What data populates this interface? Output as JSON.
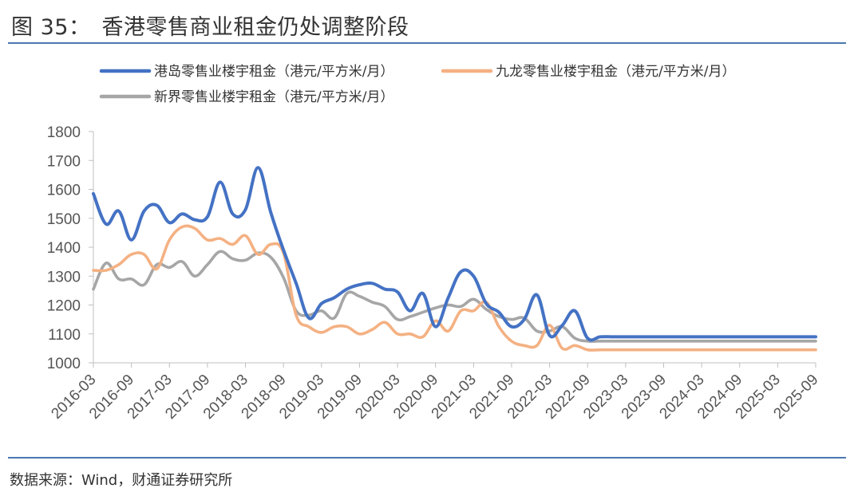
{
  "figure": {
    "number": "图 35：",
    "title": "香港零售商业租金仍处调整阶段",
    "source": "数据来源：Wind，财通证券研究所"
  },
  "chart_data": {
    "type": "line",
    "title": "香港零售商业租金仍处调整阶段",
    "xlabel": "",
    "ylabel": "",
    "ylim": [
      1000,
      1800
    ],
    "yticks": [
      1000,
      1100,
      1200,
      1300,
      1400,
      1500,
      1600,
      1700,
      1800
    ],
    "xticks": [
      "2016-03",
      "2016-09",
      "2017-03",
      "2017-09",
      "2018-03",
      "2018-09",
      "2019-03",
      "2019-09",
      "2020-03",
      "2020-09",
      "2021-03",
      "2021-09",
      "2022-03",
      "2022-09",
      "2023-03",
      "2023-09",
      "2024-03",
      "2024-09",
      "2025-03",
      "2025-09"
    ],
    "x": [
      0,
      2,
      4,
      6,
      8,
      10,
      12,
      14,
      16,
      18,
      20,
      22,
      24,
      26,
      28,
      30,
      32,
      34,
      36,
      38,
      40,
      42,
      44,
      46,
      48,
      50,
      52,
      54,
      56,
      58,
      60,
      62,
      64,
      66,
      68,
      70,
      72,
      74,
      76,
      78,
      80,
      82,
      84,
      86,
      88,
      90,
      92,
      94,
      96,
      98,
      100,
      102,
      104,
      106,
      108,
      110,
      112,
      114
    ],
    "legend_position": "top",
    "series": [
      {
        "name": "港岛零售业楼宇租金（港元/平方米/月）",
        "color": "#4472c4",
        "values": [
          1585,
          1480,
          1525,
          1425,
          1525,
          1545,
          1485,
          1515,
          1495,
          1505,
          1625,
          1515,
          1530,
          1675,
          1520,
          1390,
          1275,
          1155,
          1205,
          1225,
          1255,
          1270,
          1275,
          1255,
          1245,
          1180,
          1240,
          1125,
          1225,
          1315,
          1300,
          1205,
          1175,
          1125,
          1150,
          1235,
          1095,
          1130,
          1180,
          1085,
          1090,
          1090,
          1090,
          1090,
          1090,
          1090,
          1090,
          1090,
          1090,
          1090,
          1090,
          1090,
          1090,
          1090,
          1090,
          1090,
          1090,
          1090
        ]
      },
      {
        "name": "九龙零售业楼宇租金（港元/平方米/月）",
        "color": "#f4b183",
        "values": [
          1320,
          1320,
          1340,
          1375,
          1375,
          1325,
          1425,
          1470,
          1465,
          1425,
          1430,
          1410,
          1440,
          1375,
          1410,
          1380,
          1165,
          1125,
          1105,
          1125,
          1125,
          1100,
          1115,
          1140,
          1100,
          1100,
          1090,
          1145,
          1110,
          1180,
          1180,
          1210,
          1125,
          1075,
          1060,
          1060,
          1130,
          1050,
          1060,
          1045,
          1045,
          1045,
          1045,
          1045,
          1045,
          1045,
          1045,
          1045,
          1045,
          1045,
          1045,
          1045,
          1045,
          1045,
          1045,
          1045,
          1045,
          1045
        ]
      },
      {
        "name": "新界零售业楼宇租金（港元/平方米/月）",
        "color": "#a6a6a6",
        "values": [
          1255,
          1345,
          1290,
          1290,
          1270,
          1340,
          1330,
          1350,
          1300,
          1340,
          1385,
          1360,
          1355,
          1380,
          1365,
          1295,
          1180,
          1165,
          1180,
          1155,
          1240,
          1230,
          1210,
          1195,
          1150,
          1160,
          1175,
          1190,
          1200,
          1195,
          1220,
          1185,
          1160,
          1150,
          1155,
          1110,
          1110,
          1125,
          1085,
          1075,
          1075,
          1075,
          1075,
          1075,
          1075,
          1075,
          1075,
          1075,
          1075,
          1075,
          1075,
          1075,
          1075,
          1075,
          1075,
          1075,
          1075,
          1075
        ]
      }
    ]
  }
}
